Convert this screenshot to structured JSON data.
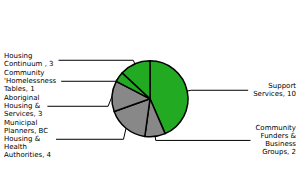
{
  "chart_data": {
    "type": "pie",
    "categories": [
      "Support\nServices, 10",
      "Community\nFunders &\nBusiness\nGroups, 2",
      "Municipal\nPlanners, BC\nHousing &\nHealth\nAuthorities, 4",
      "Aboriginal\nHousing &\nServices, 3",
      "Community\n'Homelessness\nTables, 1",
      "Housing\nContinuum , 3"
    ],
    "values": [
      10,
      2,
      4,
      3,
      1,
      3
    ],
    "colors": [
      "#22aa22",
      "#888888",
      "#888888",
      "#888888",
      "#22aa22",
      "#22aa22"
    ]
  }
}
